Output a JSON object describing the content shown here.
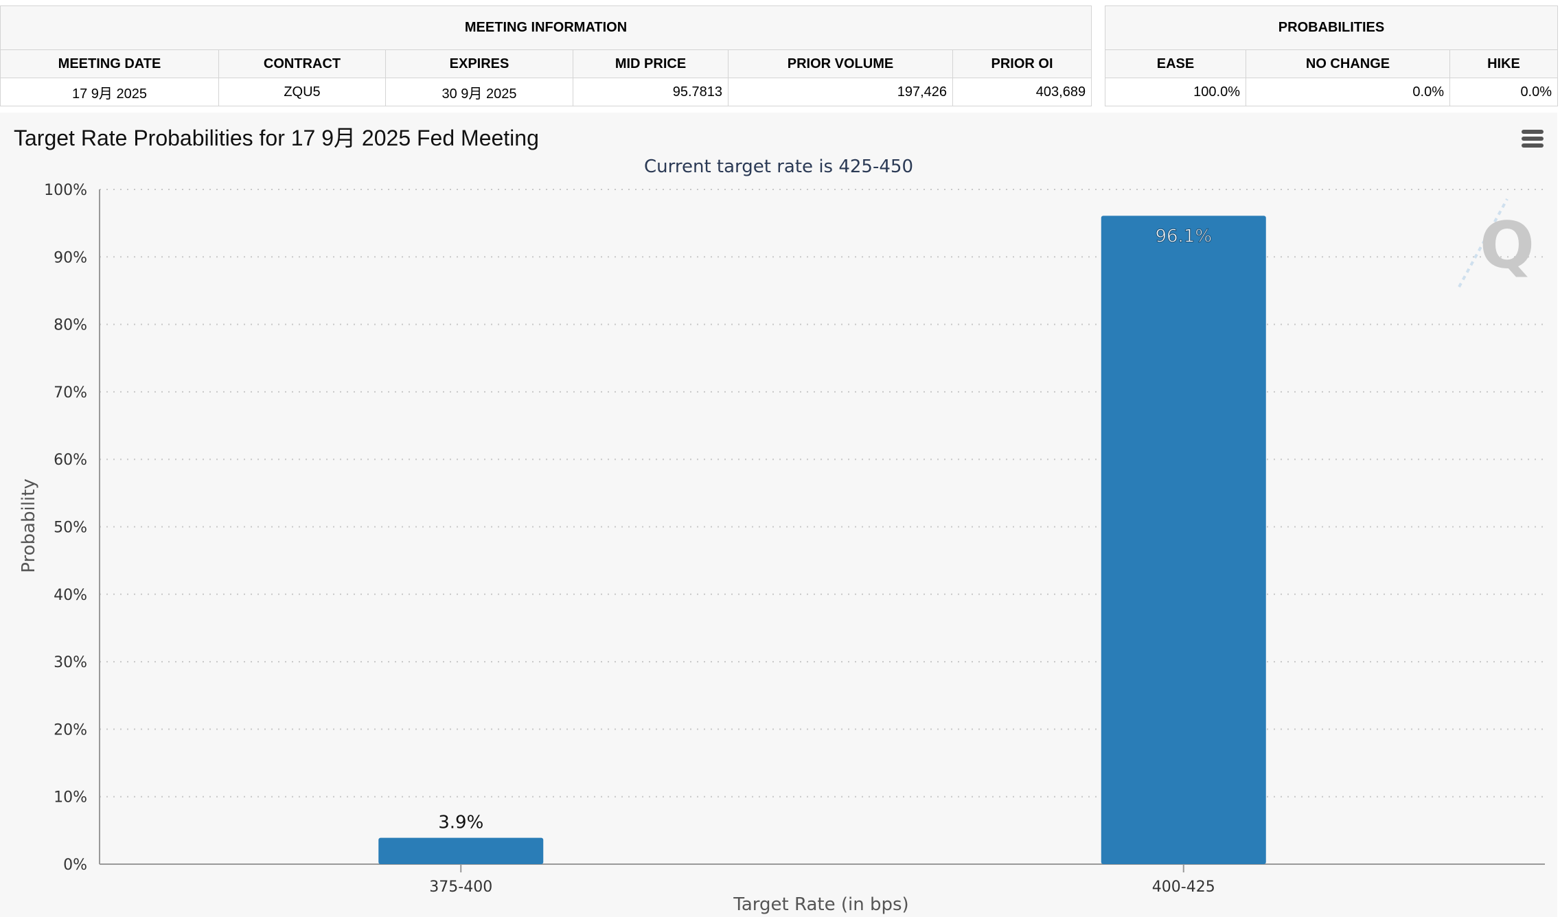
{
  "meeting_info": {
    "header": "MEETING INFORMATION",
    "columns": [
      "MEETING DATE",
      "CONTRACT",
      "EXPIRES",
      "MID PRICE",
      "PRIOR VOLUME",
      "PRIOR OI"
    ],
    "row": {
      "meeting_date": "17 9月 2025",
      "contract": "ZQU5",
      "expires": "30 9月 2025",
      "mid_price": "95.7813",
      "prior_volume": "197,426",
      "prior_oi": "403,689"
    }
  },
  "probabilities": {
    "header": "PROBABILITIES",
    "columns": [
      "EASE",
      "NO CHANGE",
      "HIKE"
    ],
    "row": {
      "ease": "100.0%",
      "no_change": "0.0%",
      "hike": "0.0%"
    }
  },
  "chart_data": {
    "type": "bar",
    "title": "Target Rate Probabilities for 17 9月 2025 Fed Meeting",
    "subtitle": "Current target rate is 425-450",
    "xlabel": "Target Rate (in bps)",
    "ylabel": "Probability",
    "categories": [
      "375-400",
      "400-425"
    ],
    "values": [
      3.9,
      96.1
    ],
    "data_labels": [
      "3.9%",
      "96.1%"
    ],
    "ylim": [
      0,
      100
    ],
    "yticks": [
      0,
      10,
      20,
      30,
      40,
      50,
      60,
      70,
      80,
      90,
      100
    ],
    "ytick_suffix": "%",
    "grid": true,
    "bar_color": "#2a7db7"
  }
}
